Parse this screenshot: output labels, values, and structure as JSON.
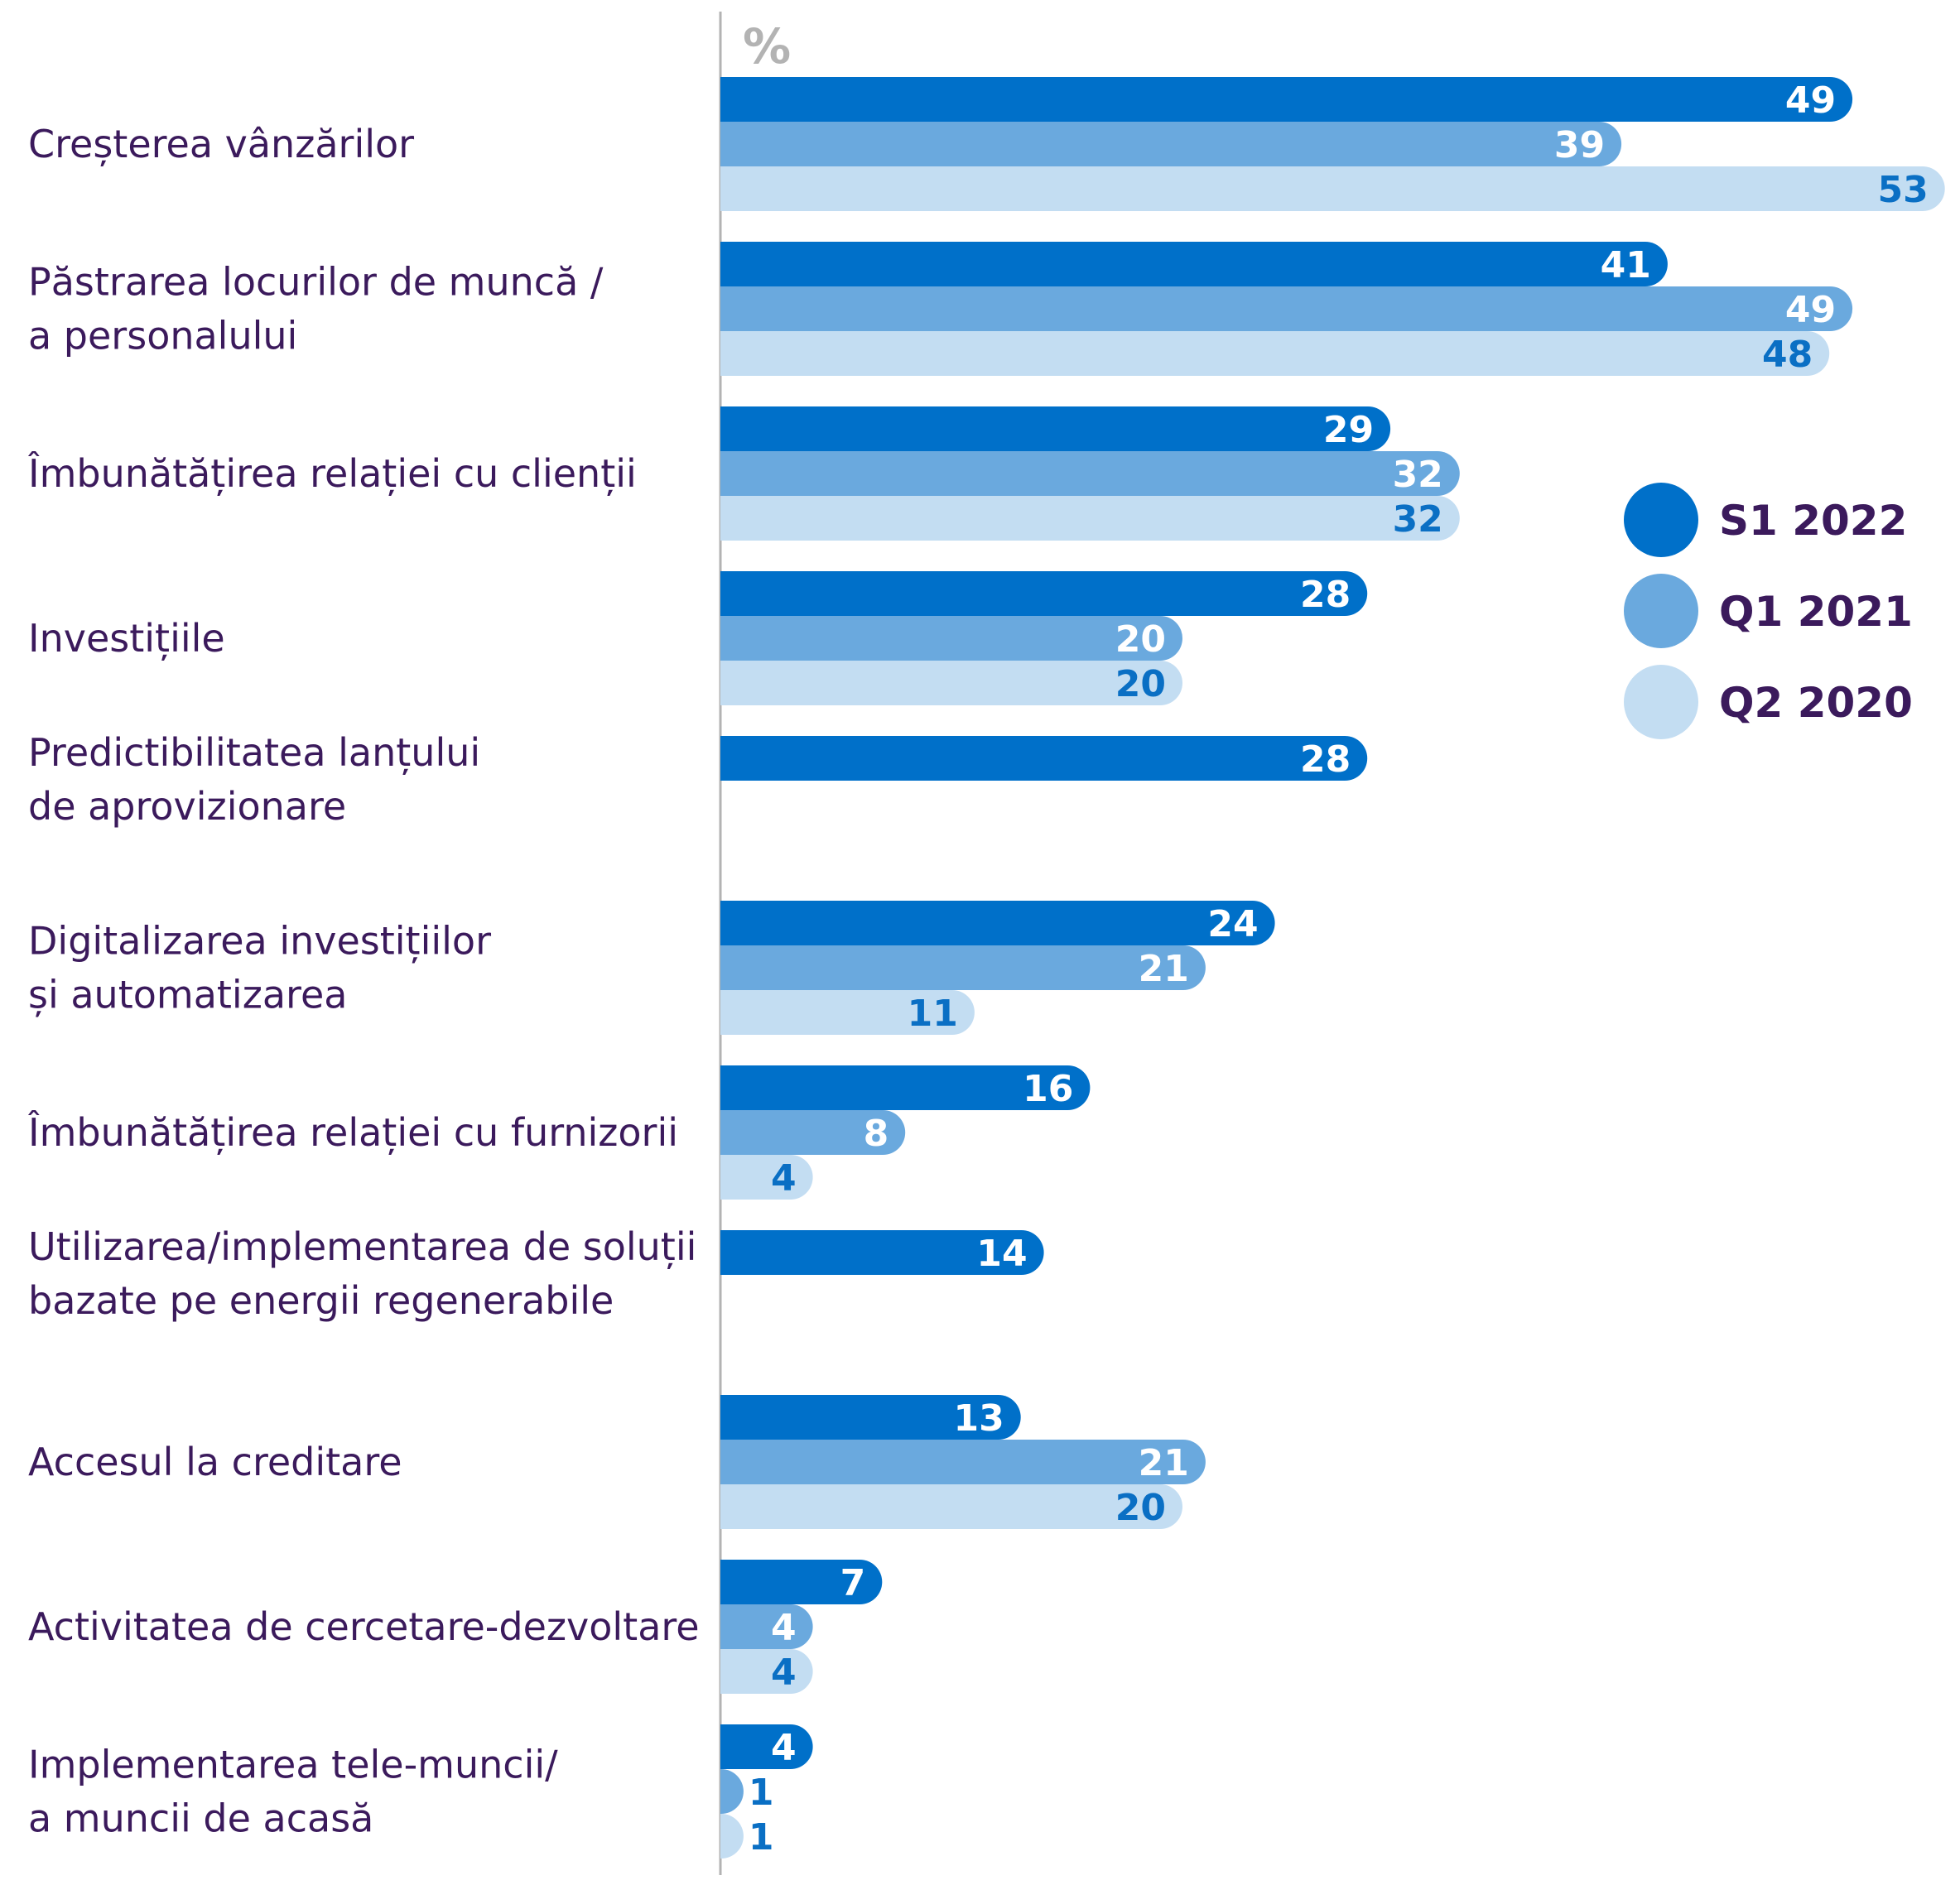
{
  "chart_data": {
    "type": "bar",
    "orientation": "horizontal",
    "unit_label": "%",
    "categories": [
      [
        "Creșterea vânzărilor"
      ],
      [
        "Păstrarea locurilor de muncă /",
        "a personalului"
      ],
      [
        "Îmbunătățirea relației cu clienții"
      ],
      [
        "Investițiile"
      ],
      [
        "Predictibilitatea lanțului",
        "de aprovizionare"
      ],
      [
        "Digitalizarea investițiilor",
        "și automatizarea"
      ],
      [
        "Îmbunătățirea relației cu furnizorii"
      ],
      [
        "Utilizarea/implementarea de soluții",
        "bazate pe energii regenerabile"
      ],
      [
        "Accesul la creditare"
      ],
      [
        "Activitatea de cercetare-dezvoltare"
      ],
      [
        "Implementarea tele-muncii/",
        "a muncii de acasă"
      ]
    ],
    "series": [
      {
        "name": "S1 2022",
        "color": "#0070c9",
        "label_color": "#ffffff",
        "values": [
          49,
          41,
          29,
          28,
          28,
          24,
          16,
          14,
          13,
          7,
          4
        ]
      },
      {
        "name": "Q1 2021",
        "color": "#6aa9de",
        "label_color": "#ffffff",
        "values": [
          39,
          49,
          32,
          20,
          null,
          21,
          8,
          null,
          21,
          4,
          1
        ]
      },
      {
        "name": "Q2 2020",
        "color": "#c3ddf2",
        "label_color": "#0a6fc4",
        "values": [
          53,
          48,
          32,
          20,
          null,
          11,
          4,
          null,
          20,
          4,
          1
        ]
      }
    ],
    "xlim": [
      0,
      53
    ],
    "legend_position": "right",
    "category_label_color": "#3b1a5c",
    "legend_text_color": "#3b1a5c",
    "unit_label_color": "#b3b3b3",
    "axis_color": "#b3b3b3",
    "grid": false
  }
}
